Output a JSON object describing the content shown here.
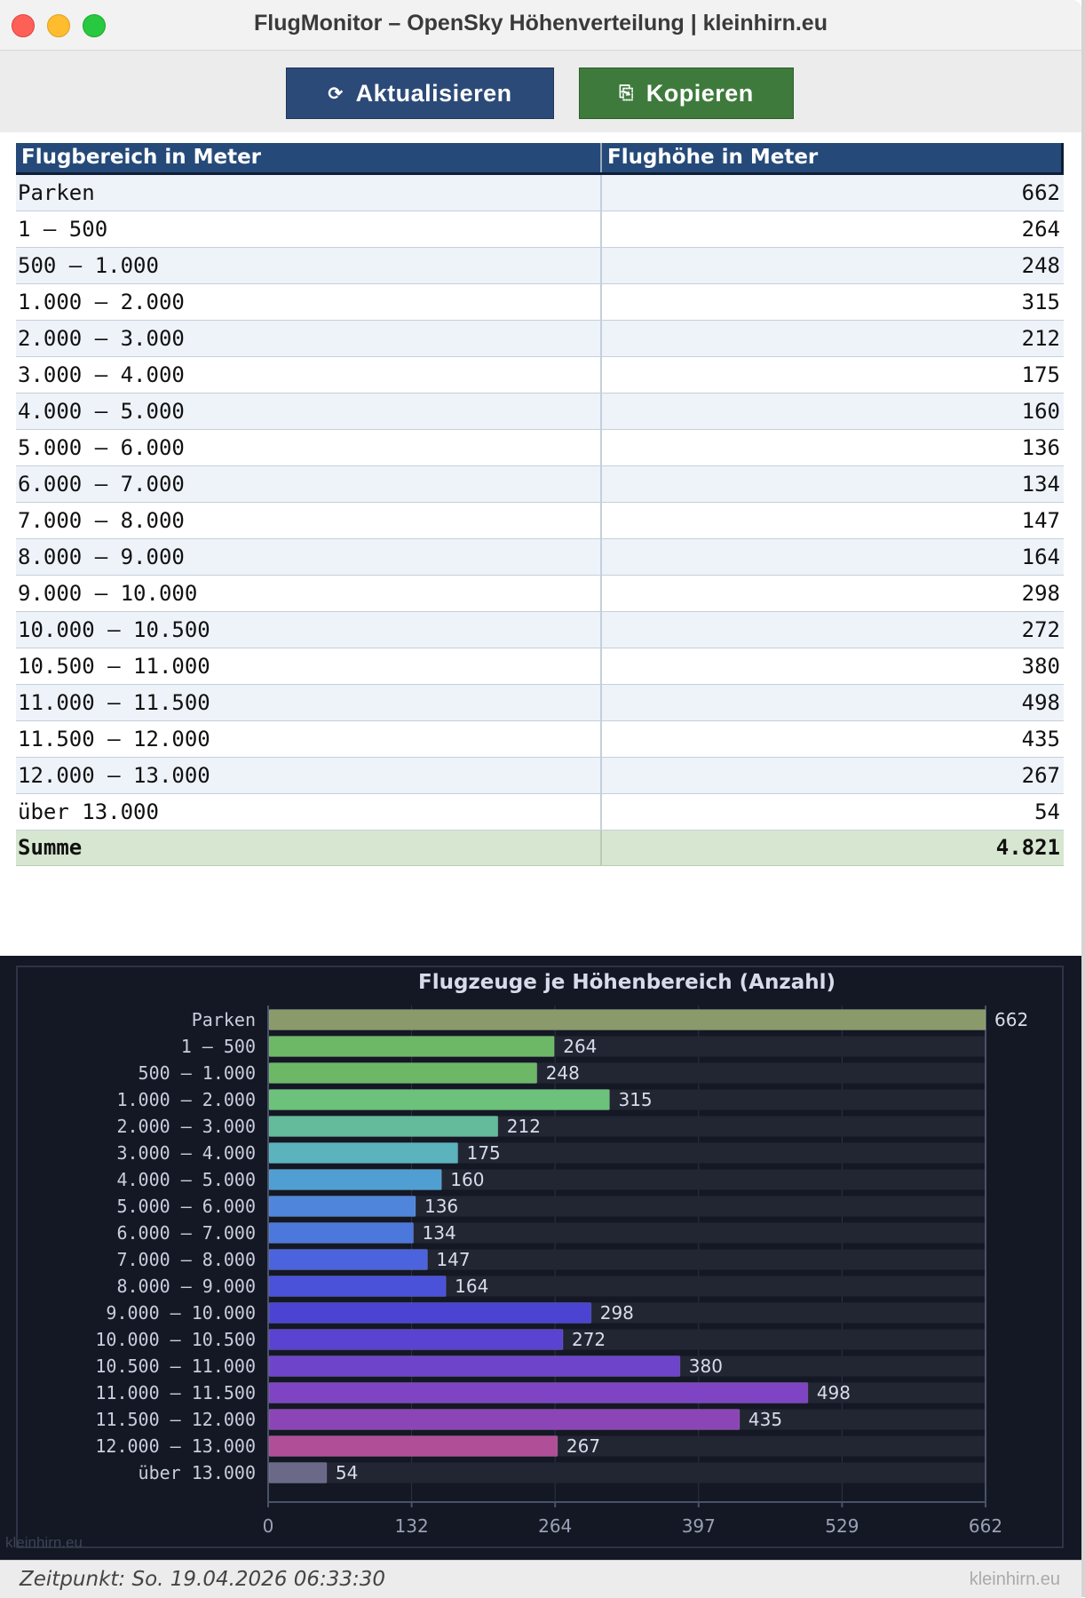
{
  "window": {
    "title": "FlugMonitor – OpenSky Höhenverteilung  |  kleinhirn.eu"
  },
  "toolbar": {
    "refresh_icon": "⟳",
    "refresh_label": "Aktualisieren",
    "copy_icon": "⎘",
    "copy_label": "Kopieren"
  },
  "table": {
    "headers": [
      "Flugbereich in Meter",
      "Flughöhe in Meter"
    ],
    "rows": [
      {
        "range": "Parken",
        "value": "662"
      },
      {
        "range": "1 – 500",
        "value": "264"
      },
      {
        "range": "500 – 1.000",
        "value": "248"
      },
      {
        "range": "1.000 – 2.000",
        "value": "315"
      },
      {
        "range": "2.000 – 3.000",
        "value": "212"
      },
      {
        "range": "3.000 – 4.000",
        "value": "175"
      },
      {
        "range": "4.000 – 5.000",
        "value": "160"
      },
      {
        "range": "5.000 – 6.000",
        "value": "136"
      },
      {
        "range": "6.000 – 7.000",
        "value": "134"
      },
      {
        "range": "7.000 – 8.000",
        "value": "147"
      },
      {
        "range": "8.000 – 9.000",
        "value": "164"
      },
      {
        "range": "9.000 – 10.000",
        "value": "298"
      },
      {
        "range": "10.000 – 10.500",
        "value": "272"
      },
      {
        "range": "10.500 – 11.000",
        "value": "380"
      },
      {
        "range": "11.000 – 11.500",
        "value": "498"
      },
      {
        "range": "11.500 – 12.000",
        "value": "435"
      },
      {
        "range": "12.000 – 13.000",
        "value": "267"
      },
      {
        "range": "über 13.000",
        "value": "54"
      }
    ],
    "sum_label": "Summe",
    "sum_value": "4.821"
  },
  "chart_data": {
    "type": "bar",
    "orientation": "horizontal",
    "title": "Flugzeuge je Höhenbereich  (Anzahl)",
    "categories": [
      "Parken",
      "1 – 500",
      "500 – 1.000",
      "1.000 – 2.000",
      "2.000 – 3.000",
      "3.000 – 4.000",
      "4.000 – 5.000",
      "5.000 – 6.000",
      "6.000 – 7.000",
      "7.000 – 8.000",
      "8.000 – 9.000",
      "9.000 – 10.000",
      "10.000 – 10.500",
      "10.500 – 11.000",
      "11.000 – 11.500",
      "11.500 – 12.000",
      "12.000 – 13.000",
      "über 13.000"
    ],
    "values": [
      662,
      264,
      248,
      315,
      212,
      175,
      160,
      136,
      134,
      147,
      164,
      298,
      272,
      380,
      498,
      435,
      267,
      54
    ],
    "colors": [
      "#8a9a6a",
      "#6cb867",
      "#6cb867",
      "#6cc27a",
      "#63bb9b",
      "#5bb3bd",
      "#4f9fd2",
      "#4f86db",
      "#4c78dc",
      "#4b63dc",
      "#4a52d9",
      "#4b44d3",
      "#5a43d0",
      "#6e44cb",
      "#7f44c4",
      "#8c45b6",
      "#b04e97",
      "#6a6a88"
    ],
    "xlim": [
      0,
      662
    ],
    "xticks": [
      "0",
      "132",
      "264",
      "397",
      "529",
      "662"
    ],
    "xlabel": "",
    "ylabel": ""
  },
  "watermark": {
    "chart": "kleinhirn.eu",
    "status": "kleinhirn.eu"
  },
  "status": {
    "text": "Zeitpunkt: So. 19.04.2026 06:33:30"
  }
}
